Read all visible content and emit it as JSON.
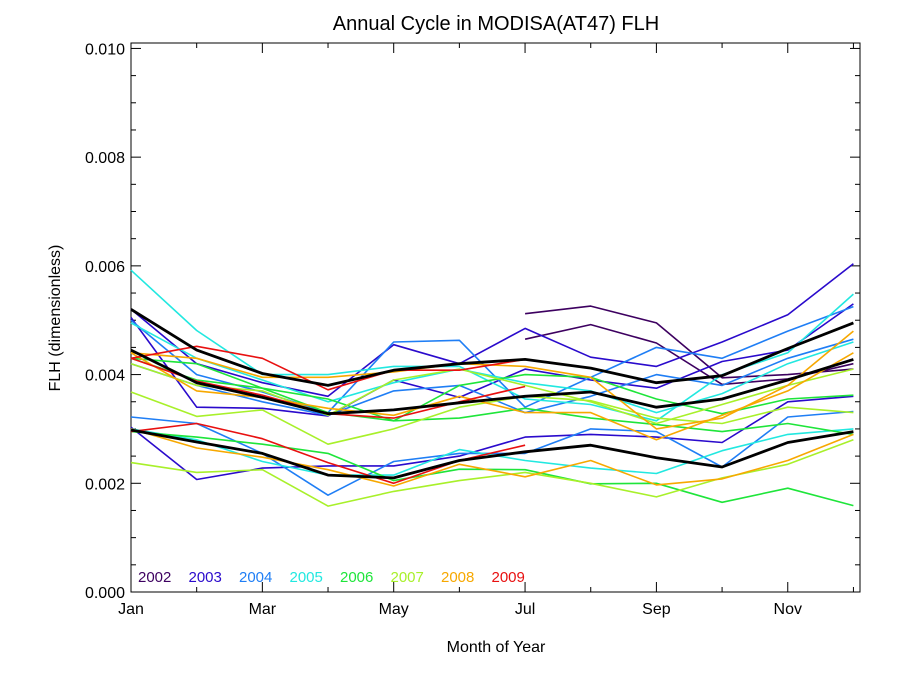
{
  "chart_data": {
    "type": "line",
    "title": "Annual Cycle in MODISA(AT47) FLH",
    "xlabel": "Month of Year",
    "ylabel": "FLH (dimensionless)",
    "xlim": [
      1,
      12.1
    ],
    "ylim": [
      0.0,
      0.0101
    ],
    "x_ticks": [
      {
        "value": 1,
        "label": "Jan"
      },
      {
        "value": 3,
        "label": "Mar"
      },
      {
        "value": 5,
        "label": "May"
      },
      {
        "value": 7,
        "label": "Jul"
      },
      {
        "value": 9,
        "label": "Sep"
      },
      {
        "value": 11,
        "label": "Nov"
      }
    ],
    "y_ticks": [
      {
        "value": 0.0,
        "label": "0.000"
      },
      {
        "value": 0.002,
        "label": "0.002"
      },
      {
        "value": 0.004,
        "label": "0.004"
      },
      {
        "value": 0.006,
        "label": "0.006"
      },
      {
        "value": 0.008,
        "label": "0.008"
      },
      {
        "value": 0.01,
        "label": "0.010"
      }
    ],
    "x": [
      1,
      2,
      3,
      4,
      5,
      6,
      7,
      8,
      9,
      10,
      11,
      12
    ],
    "legend_position": "bottom-left",
    "legend": [
      {
        "label": "2002",
        "color": "#3d0060"
      },
      {
        "label": "2003",
        "color": "#2a0acc"
      },
      {
        "label": "2004",
        "color": "#1f7ef5"
      },
      {
        "label": "2005",
        "color": "#22e8e0"
      },
      {
        "label": "2006",
        "color": "#1ee53a"
      },
      {
        "label": "2007",
        "color": "#a8f02a"
      },
      {
        "label": "2008",
        "color": "#f7a800"
      },
      {
        "label": "2009",
        "color": "#e81010"
      }
    ],
    "series": [
      {
        "color": "#3d0060",
        "values": [
          null,
          null,
          null,
          null,
          null,
          null,
          0.00465,
          0.00492,
          0.00458,
          0.00382,
          0.00392,
          0.0042
        ]
      },
      {
        "color": "#3d0060",
        "values": [
          null,
          null,
          null,
          null,
          null,
          null,
          0.00512,
          0.00526,
          0.00495,
          0.00394,
          0.004,
          0.0041
        ]
      },
      {
        "color": "#2a0acc",
        "values": [
          0.00303,
          0.00207,
          0.00228,
          0.00232,
          0.00232,
          0.0025,
          0.00285,
          0.0029,
          0.00285,
          0.00275,
          0.0035,
          0.0036
        ]
      },
      {
        "color": "#2a0acc",
        "values": [
          0.00505,
          0.0034,
          0.00338,
          0.00324,
          0.0039,
          0.00358,
          0.0041,
          0.0039,
          0.00375,
          0.00424,
          0.00445,
          0.0053
        ]
      },
      {
        "color": "#2a0acc",
        "values": [
          0.0052,
          0.0042,
          0.00385,
          0.0036,
          0.00455,
          0.0042,
          0.00485,
          0.00432,
          0.00415,
          0.0046,
          0.0051,
          0.00604
        ]
      },
      {
        "color": "#1f7ef5",
        "values": [
          0.00322,
          0.0031,
          0.00255,
          0.00178,
          0.0024,
          0.00255,
          0.00255,
          0.003,
          0.00295,
          0.0023,
          0.00322,
          0.00332
        ]
      },
      {
        "color": "#1f7ef5",
        "values": [
          0.005,
          0.004,
          0.00368,
          0.0033,
          0.0046,
          0.00463,
          0.0034,
          0.00395,
          0.0045,
          0.0043,
          0.0048,
          0.00525
        ]
      },
      {
        "color": "#1f7ef5",
        "values": [
          0.0042,
          0.0038,
          0.0035,
          0.00325,
          0.0037,
          0.0038,
          0.0033,
          0.0036,
          0.004,
          0.0038,
          0.0043,
          0.00465
        ]
      },
      {
        "color": "#22e8e0",
        "values": [
          0.00592,
          0.00481,
          0.004,
          0.004,
          0.00415,
          0.00415,
          0.00355,
          0.00345,
          0.00315,
          0.004,
          0.0044,
          0.00548
        ]
      },
      {
        "color": "#22e8e0",
        "values": [
          0.003,
          0.0028,
          0.0024,
          0.00215,
          0.00215,
          0.00262,
          0.00242,
          0.00228,
          0.00218,
          0.0026,
          0.0029,
          0.003
        ]
      },
      {
        "color": "#22e8e0",
        "values": [
          0.00495,
          0.0043,
          0.0039,
          0.0035,
          0.00385,
          0.0041,
          0.00385,
          0.0037,
          0.0033,
          0.00365,
          0.0042,
          0.0046
        ]
      },
      {
        "color": "#1ee53a",
        "values": [
          0.0043,
          0.0039,
          0.00375,
          0.0033,
          0.00315,
          0.0038,
          0.004,
          0.00395,
          0.00355,
          0.00328,
          0.00355,
          0.00362
        ]
      },
      {
        "color": "#1ee53a",
        "values": [
          0.00295,
          0.00285,
          0.00272,
          0.00255,
          0.00205,
          0.00226,
          0.00225,
          0.00199,
          0.002,
          0.00165,
          0.00191,
          0.00159
        ]
      },
      {
        "color": "#1ee53a",
        "values": [
          0.0043,
          0.0042,
          0.00375,
          0.00355,
          0.00315,
          0.0032,
          0.00338,
          0.0032,
          0.00308,
          0.00295,
          0.0031,
          0.0029
        ]
      },
      {
        "color": "#a8f02a",
        "values": [
          0.00368,
          0.00323,
          0.00335,
          0.00272,
          0.003,
          0.0034,
          0.0036,
          0.00352,
          0.0032,
          0.0031,
          0.0034,
          0.0033
        ]
      },
      {
        "color": "#a8f02a",
        "values": [
          0.00238,
          0.0022,
          0.00225,
          0.00158,
          0.00185,
          0.00205,
          0.0022,
          0.002,
          0.00175,
          0.0021,
          0.00235,
          0.0028
        ]
      },
      {
        "color": "#a8f02a",
        "values": [
          0.0042,
          0.0038,
          0.0037,
          0.00325,
          0.0039,
          0.0041,
          0.0038,
          0.0035,
          0.0031,
          0.00345,
          0.0038,
          0.0041
        ]
      },
      {
        "color": "#f7a800",
        "values": [
          0.003,
          0.00265,
          0.00248,
          0.00225,
          0.00195,
          0.00235,
          0.00212,
          0.00242,
          0.00197,
          0.00208,
          0.00242,
          0.0029
        ]
      },
      {
        "color": "#f7a800",
        "values": [
          0.0044,
          0.0037,
          0.00358,
          0.00338,
          0.00325,
          0.0036,
          0.0033,
          0.0033,
          0.0028,
          0.00325,
          0.0037,
          0.0044
        ]
      },
      {
        "color": "#f7a800",
        "values": [
          0.0044,
          0.0043,
          0.00395,
          0.00395,
          0.00405,
          0.0042,
          0.00415,
          0.00395,
          0.003,
          0.0032,
          0.0038,
          0.0048
        ]
      },
      {
        "color": "#e81010",
        "values": [
          0.00295,
          0.0031,
          0.00282,
          0.00238,
          0.002,
          0.00242,
          0.0027,
          null,
          null,
          null,
          null,
          null
        ]
      },
      {
        "color": "#e81010",
        "values": [
          0.0043,
          0.00388,
          0.00362,
          0.00328,
          0.0032,
          0.0035,
          0.00378,
          null,
          null,
          null,
          null,
          null
        ]
      },
      {
        "color": "#e81010",
        "values": [
          0.0043,
          0.00452,
          0.0043,
          0.00372,
          0.00408,
          0.00408,
          0.00428,
          null,
          null,
          null,
          null,
          null
        ]
      },
      {
        "color": "#000000",
        "width": 2.8,
        "values": [
          0.00298,
          0.00276,
          0.00255,
          0.00215,
          0.0021,
          0.00242,
          0.00258,
          0.0027,
          0.00247,
          0.0023,
          0.00275,
          0.00295
        ]
      },
      {
        "color": "#000000",
        "width": 2.8,
        "values": [
          0.00445,
          0.00385,
          0.00358,
          0.00328,
          0.00335,
          0.00348,
          0.0036,
          0.00368,
          0.0034,
          0.00355,
          0.0039,
          0.00428
        ]
      },
      {
        "color": "#000000",
        "width": 2.8,
        "values": [
          0.0052,
          0.00445,
          0.00402,
          0.0038,
          0.00408,
          0.0042,
          0.00428,
          0.00412,
          0.00385,
          0.00398,
          0.00448,
          0.00495
        ]
      }
    ]
  }
}
